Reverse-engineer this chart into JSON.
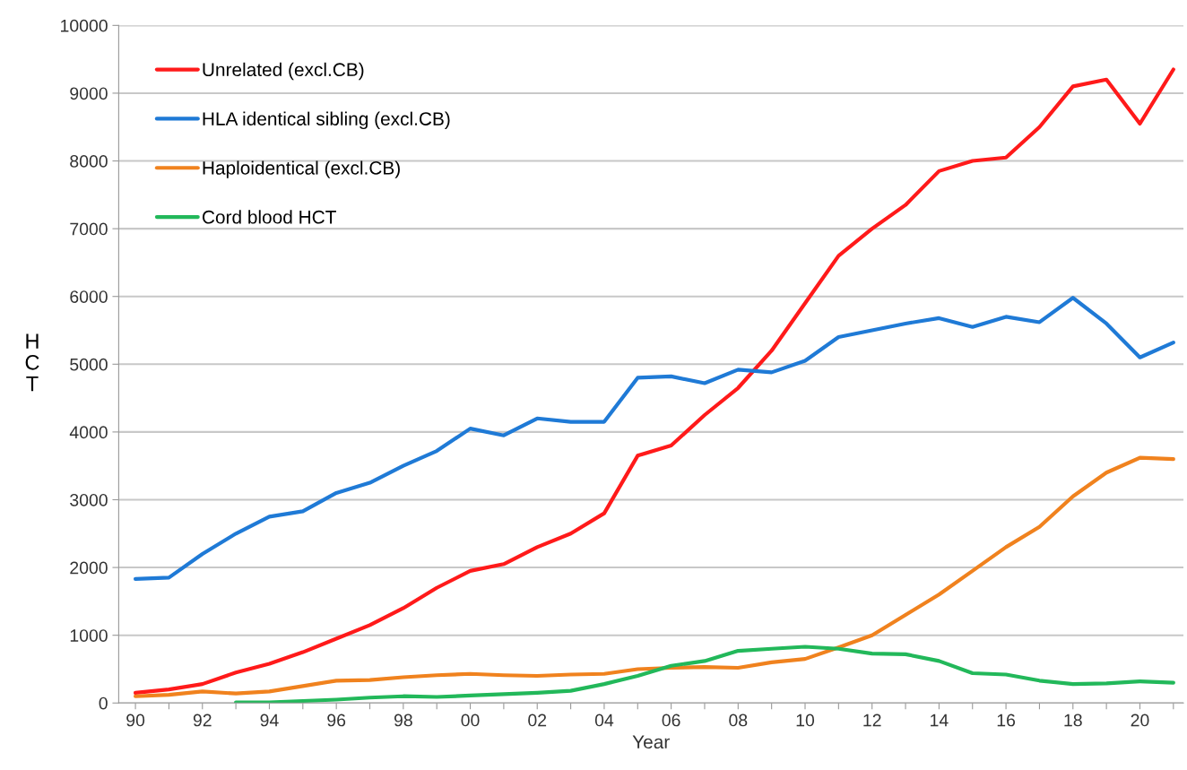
{
  "chart_data": {
    "type": "line",
    "xlabel": "Year",
    "ylabel": "HCT",
    "x": [
      1990,
      1991,
      1992,
      1993,
      1994,
      1995,
      1996,
      1997,
      1998,
      1999,
      2000,
      2001,
      2002,
      2003,
      2004,
      2005,
      2006,
      2007,
      2008,
      2009,
      2010,
      2011,
      2012,
      2013,
      2014,
      2015,
      2016,
      2017,
      2018,
      2019,
      2020,
      2021
    ],
    "series": [
      {
        "name": "Unrelated (excl.CB)",
        "color": "#ff1a1a",
        "values": [
          150,
          200,
          280,
          450,
          580,
          750,
          950,
          1150,
          1400,
          1700,
          1950,
          2050,
          2300,
          2500,
          2800,
          3650,
          3800,
          4250,
          4650,
          5200,
          5900,
          6600,
          7000,
          7350,
          7850,
          8000,
          8050,
          8500,
          9100,
          9200,
          8550,
          9350
        ]
      },
      {
        "name": "HLA identical sibling (excl.CB)",
        "color": "#1f7ad6",
        "values": [
          1830,
          1850,
          2200,
          2500,
          2750,
          2830,
          3100,
          3250,
          3500,
          3720,
          4050,
          3950,
          4200,
          4150,
          4150,
          4800,
          4820,
          4720,
          4920,
          4880,
          5050,
          5400,
          5500,
          5600,
          5680,
          5550,
          5700,
          5620,
          5980,
          5600,
          5100,
          5320
        ]
      },
      {
        "name": "Haploidentical (excl.CB)",
        "color": "#f0821e",
        "values": [
          100,
          120,
          170,
          140,
          170,
          250,
          330,
          340,
          380,
          410,
          430,
          410,
          400,
          420,
          430,
          500,
          520,
          530,
          520,
          600,
          650,
          820,
          1000,
          1300,
          1600,
          1950,
          2300,
          2600,
          3050,
          3400,
          3620,
          3600
        ]
      },
      {
        "name": "Cord blood HCT",
        "color": "#22b85a",
        "values": [
          null,
          null,
          null,
          10,
          10,
          30,
          50,
          80,
          100,
          90,
          110,
          130,
          150,
          180,
          280,
          400,
          550,
          620,
          770,
          800,
          830,
          800,
          730,
          720,
          620,
          440,
          420,
          330,
          280,
          290,
          320,
          300
        ]
      }
    ],
    "xlim": [
      1989.5,
      2021.3
    ],
    "xticks": [
      {
        "value": 1990,
        "label": "90"
      },
      {
        "value": 1991,
        "label": null
      },
      {
        "value": 1992,
        "label": "92"
      },
      {
        "value": 1993,
        "label": null
      },
      {
        "value": 1994,
        "label": "94"
      },
      {
        "value": 1995,
        "label": null
      },
      {
        "value": 1996,
        "label": "96"
      },
      {
        "value": 1997,
        "label": null
      },
      {
        "value": 1998,
        "label": "98"
      },
      {
        "value": 1999,
        "label": null
      },
      {
        "value": 2000,
        "label": "00"
      },
      {
        "value": 2001,
        "label": null
      },
      {
        "value": 2002,
        "label": "02"
      },
      {
        "value": 2003,
        "label": null
      },
      {
        "value": 2004,
        "label": "04"
      },
      {
        "value": 2005,
        "label": null
      },
      {
        "value": 2006,
        "label": "06"
      },
      {
        "value": 2007,
        "label": null
      },
      {
        "value": 2008,
        "label": "08"
      },
      {
        "value": 2009,
        "label": null
      },
      {
        "value": 2010,
        "label": "10"
      },
      {
        "value": 2011,
        "label": null
      },
      {
        "value": 2012,
        "label": "12"
      },
      {
        "value": 2013,
        "label": null
      },
      {
        "value": 2014,
        "label": "14"
      },
      {
        "value": 2015,
        "label": null
      },
      {
        "value": 2016,
        "label": "16"
      },
      {
        "value": 2017,
        "label": null
      },
      {
        "value": 2018,
        "label": "18"
      },
      {
        "value": 2019,
        "label": null
      },
      {
        "value": 2020,
        "label": "20"
      },
      {
        "value": 2021,
        "label": null
      }
    ],
    "ylim": [
      0,
      10000
    ],
    "yticks": [
      0,
      1000,
      2000,
      3000,
      4000,
      5000,
      6000,
      7000,
      8000,
      9000,
      10000
    ],
    "grid": "y",
    "legend": "top left",
    "line_style": "solid",
    "marker": "none"
  }
}
